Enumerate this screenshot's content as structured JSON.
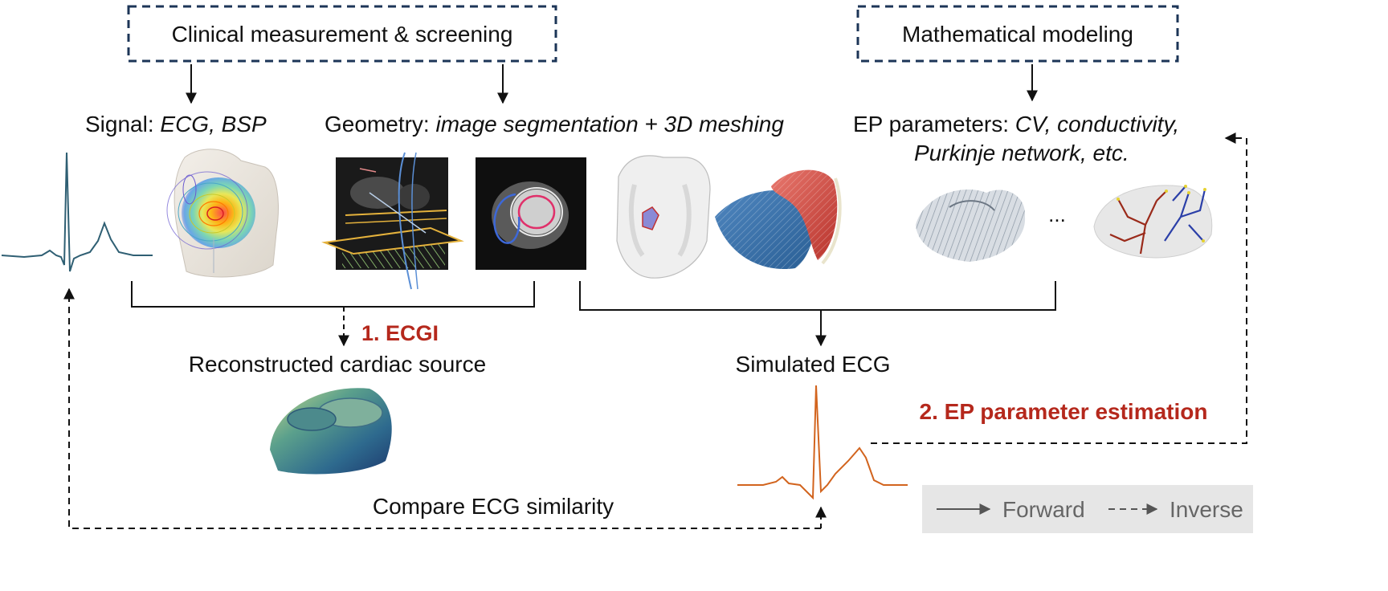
{
  "boxes": {
    "clinical": "Clinical measurement & screening",
    "modeling": "Mathematical modeling"
  },
  "labels": {
    "signal_prefix": "Signal: ",
    "signal_items": "ECG, BSP",
    "geometry_prefix": "Geometry: ",
    "geometry_items": "image segmentation + 3D meshing",
    "ep_prefix": "EP parameters: ",
    "ep_items_line1": "CV, conductivity,",
    "ep_items_line2": "Purkinje network, etc.",
    "ellipsis": "...",
    "ecgi": "1. ECGI",
    "reconstructed": "Reconstructed cardiac source",
    "simulated": "Simulated ECG",
    "ep_estimation": "2. EP parameter estimation",
    "compare": "Compare ECG similarity"
  },
  "legend": {
    "forward": "Forward",
    "inverse": "Inverse"
  },
  "colors": {
    "box_border": "#1c3557",
    "accent_red": "#b5281c",
    "ecg_measured": "#2f5f73",
    "ecg_simulated": "#d2641e",
    "legend_bg": "#e6e6e6",
    "legend_text": "#666666"
  },
  "icons": [
    "measured-ecg-trace",
    "torso-bsp-map",
    "ct-slice-image",
    "mri-short-axis-image",
    "torso-heart-mesh",
    "biventricular-mesh",
    "fiber-mesh-heart",
    "purkinje-network-heart",
    "reconstructed-source-heart",
    "simulated-ecg-trace"
  ]
}
